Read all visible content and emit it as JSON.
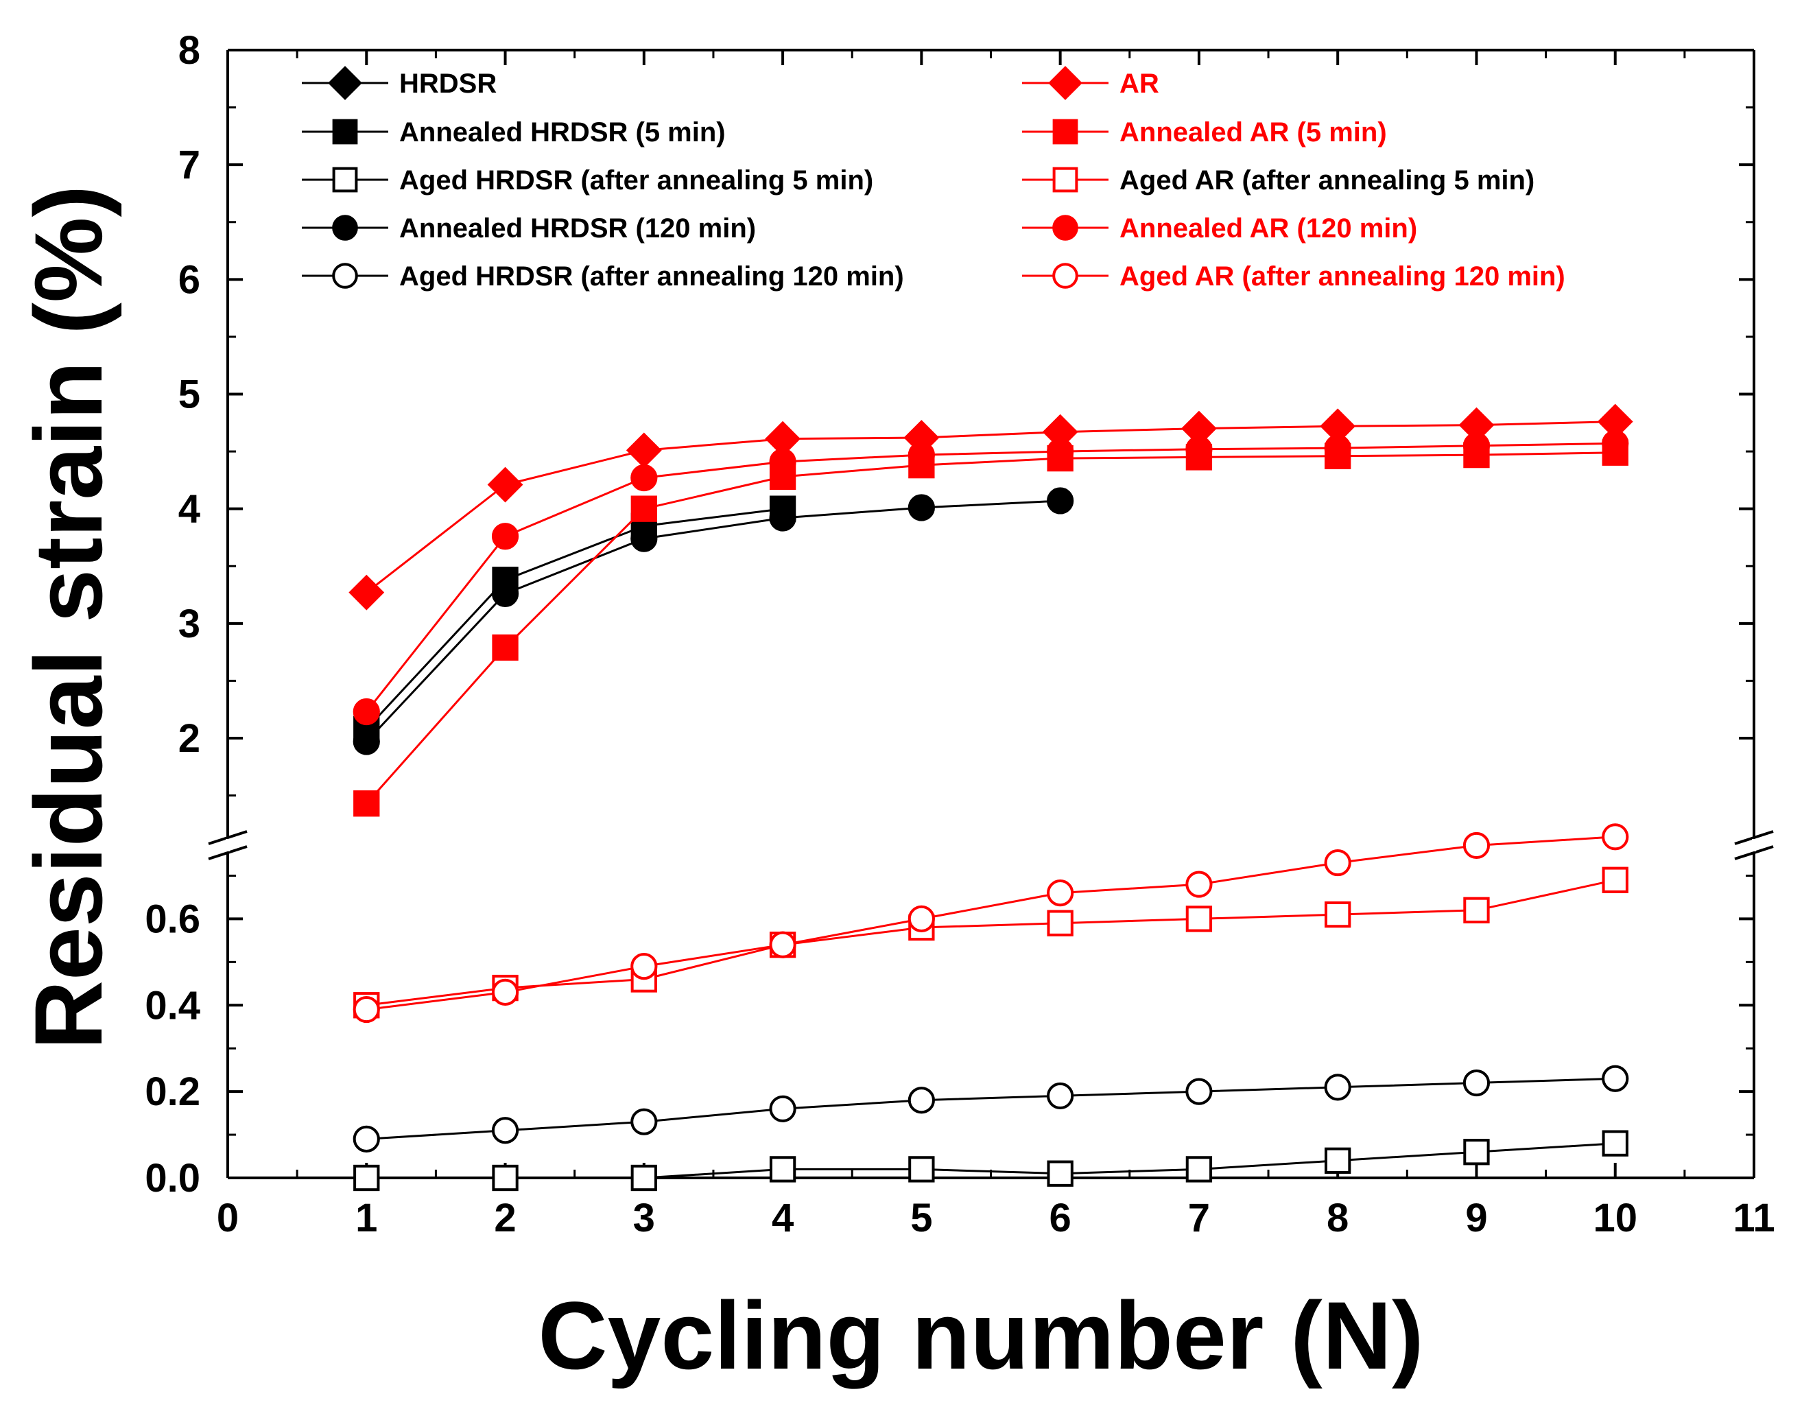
{
  "chart_data": {
    "type": "line",
    "xlabel": "Cycling number (N)",
    "ylabel": "Residual strain (%)",
    "xlim": [
      0,
      11
    ],
    "x_ticks": [
      "0",
      "1",
      "2",
      "3",
      "4",
      "5",
      "6",
      "7",
      "8",
      "9",
      "10",
      "11"
    ],
    "y_axis_break": true,
    "y_upper_range": [
      1.3,
      8
    ],
    "y_upper_ticks": [
      "2",
      "3",
      "4",
      "5",
      "6",
      "7",
      "8"
    ],
    "y_lower_range": [
      0,
      0.75
    ],
    "y_lower_ticks": [
      "0.0",
      "0.2",
      "0.4",
      "0.6"
    ],
    "grid": false,
    "legend_position": "top",
    "colors": {
      "hrdsr": "#000000",
      "ar": "#ff0000"
    },
    "series": [
      {
        "name": "HRDSR",
        "color": "#000000",
        "marker": "diamond",
        "filled": true,
        "x": [],
        "y": []
      },
      {
        "name": "Annealed HRDSR (5 min)",
        "color": "#000000",
        "marker": "square",
        "filled": true,
        "x": [
          1,
          2,
          3,
          4
        ],
        "y": [
          2.08,
          3.38,
          3.85,
          4.0
        ]
      },
      {
        "name": "Aged HRDSR (after annealing 5 min)",
        "color": "#000000",
        "marker": "square",
        "filled": false,
        "x": [
          1,
          2,
          3,
          4,
          5,
          6,
          7,
          8,
          9,
          10
        ],
        "y": [
          0.0,
          0.0,
          0.0,
          0.02,
          0.02,
          0.01,
          0.02,
          0.04,
          0.06,
          0.08
        ]
      },
      {
        "name": "Annealed HRDSR (120 min)",
        "color": "#000000",
        "marker": "circle",
        "filled": true,
        "x": [
          1,
          2,
          3,
          4,
          5,
          6
        ],
        "y": [
          1.97,
          3.26,
          3.74,
          3.92,
          4.01,
          4.07
        ]
      },
      {
        "name": "Aged HRDSR (after annealing 120 min)",
        "color": "#000000",
        "marker": "circle",
        "filled": false,
        "x": [
          1,
          2,
          3,
          4,
          5,
          6,
          7,
          8,
          9,
          10
        ],
        "y": [
          0.09,
          0.11,
          0.13,
          0.16,
          0.18,
          0.19,
          0.2,
          0.21,
          0.22,
          0.23
        ]
      },
      {
        "name": "AR",
        "color": "#ff0000",
        "marker": "diamond",
        "filled": true,
        "x": [
          1,
          2,
          3,
          4,
          5,
          6,
          7,
          8,
          9,
          10
        ],
        "y": [
          3.27,
          4.21,
          4.51,
          4.61,
          4.62,
          4.67,
          4.7,
          4.72,
          4.73,
          4.76
        ]
      },
      {
        "name": "Annealed AR (5 min)",
        "color": "#ff0000",
        "marker": "square",
        "filled": true,
        "x": [
          1,
          2,
          3,
          4,
          5,
          6,
          7,
          8,
          9,
          10
        ],
        "y": [
          1.43,
          2.79,
          4.0,
          4.28,
          4.38,
          4.44,
          4.45,
          4.46,
          4.47,
          4.49
        ]
      },
      {
        "name": "Aged AR (after annealing 5 min)",
        "color": "#ff0000",
        "marker": "square",
        "filled": false,
        "x": [
          1,
          2,
          3,
          4,
          5,
          6,
          7,
          8,
          9,
          10
        ],
        "y": [
          0.4,
          0.44,
          0.46,
          0.54,
          0.58,
          0.59,
          0.6,
          0.61,
          0.62,
          0.69
        ]
      },
      {
        "name": "Annealed AR (120 min)",
        "color": "#ff0000",
        "marker": "circle",
        "filled": true,
        "x": [
          1,
          2,
          3,
          4,
          5,
          6,
          7,
          8,
          9,
          10
        ],
        "y": [
          2.23,
          3.76,
          4.27,
          4.41,
          4.47,
          4.5,
          4.52,
          4.53,
          4.55,
          4.57
        ]
      },
      {
        "name": "Aged AR (after annealing 120 min)",
        "color": "#ff0000",
        "marker": "circle",
        "filled": false,
        "x": [
          1,
          2,
          3,
          4,
          5,
          6,
          7,
          8,
          9,
          10
        ],
        "y": [
          0.39,
          0.43,
          0.49,
          0.54,
          0.6,
          0.66,
          0.68,
          0.73,
          0.77,
          0.79
        ]
      }
    ]
  }
}
